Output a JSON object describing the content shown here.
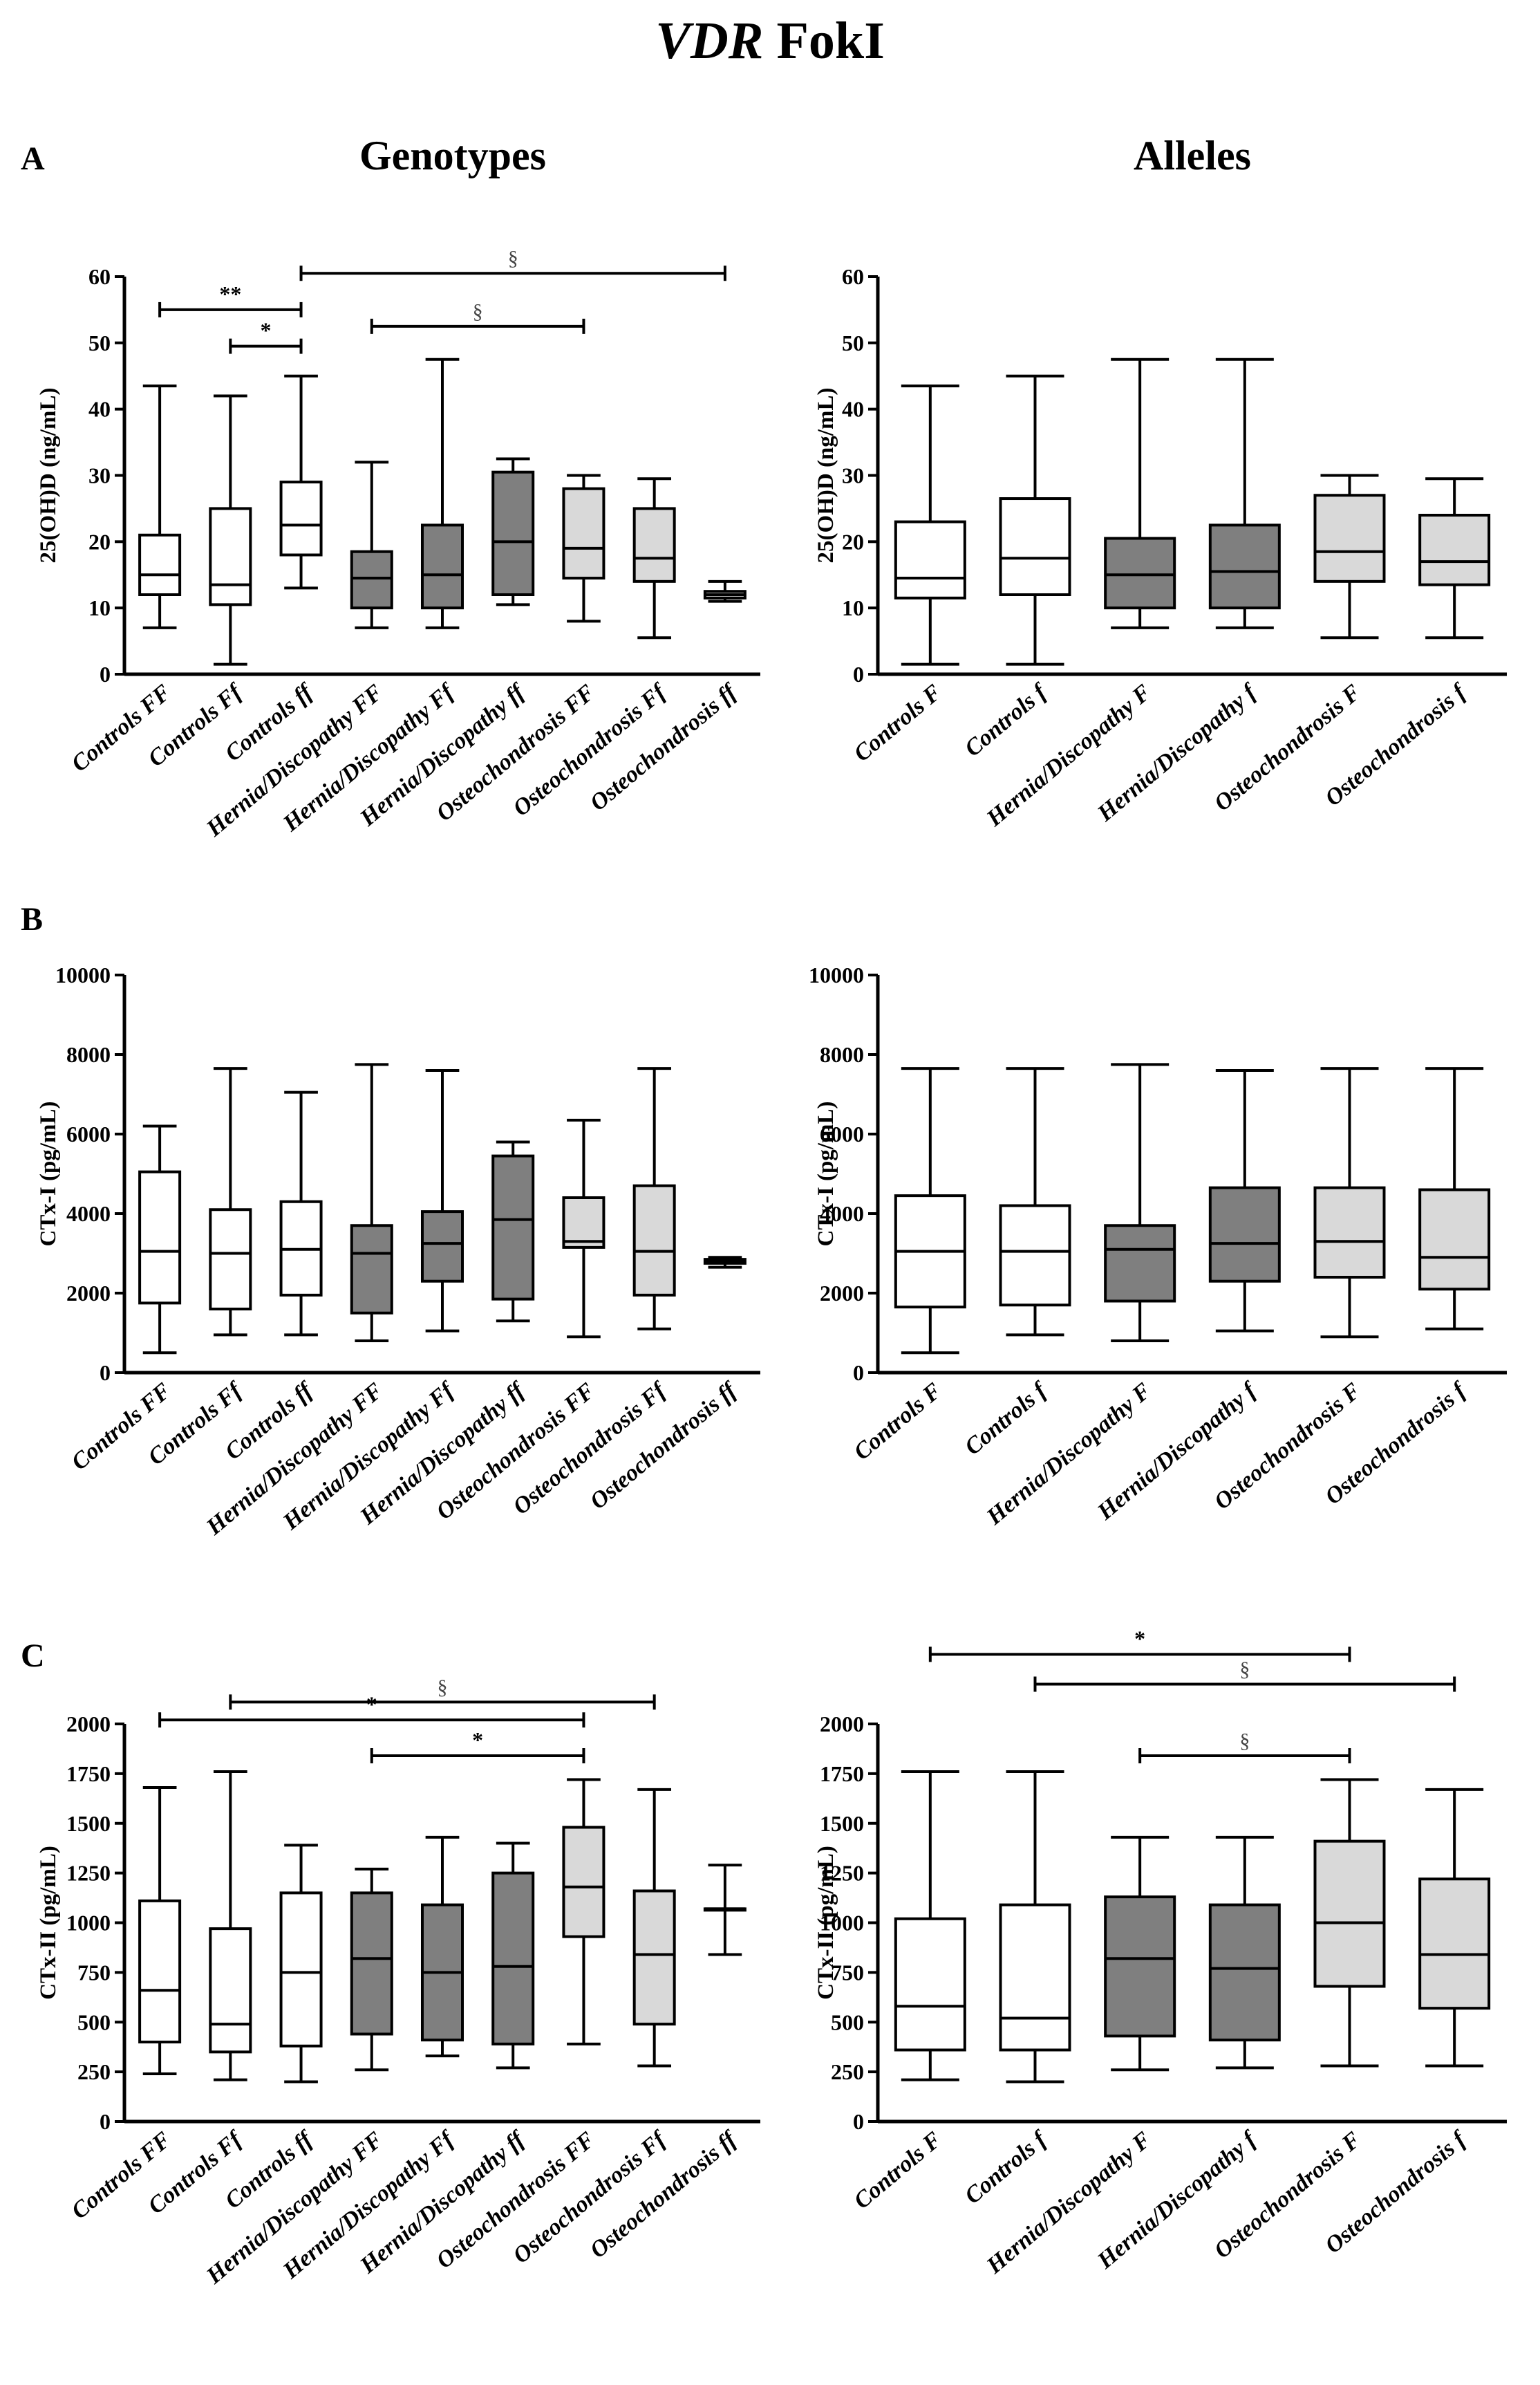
{
  "figure": {
    "title_italic": "VDR",
    "title_rest": "FokI",
    "col_genotypes": "Genotypes",
    "col_alleles": "Alleles",
    "panel_letters": [
      "A",
      "B",
      "C"
    ]
  },
  "colors": {
    "control": "#ffffff",
    "hernia": "#7f7f7f",
    "osteo": "#d9d9d9",
    "line": "#000000"
  },
  "chart_data": [
    {
      "id": "A-genotypes",
      "panel": "A",
      "type": "boxplot",
      "ylabel": "25(OH)D (ng/mL)",
      "ylim": [
        0,
        60
      ],
      "yticks": [
        0,
        10,
        20,
        30,
        40,
        50,
        60
      ],
      "ytick_labels": [
        "0",
        "10",
        "20",
        "30",
        "40",
        "50",
        "60"
      ],
      "categories": [
        "Controls FF",
        "Controls Ff",
        "Controls ff",
        "Hernia/Discopathy FF",
        "Hernia/Discopathy Ff",
        "Hernia/Discopathy ff",
        "Osteochondrosis FF",
        "Osteochondrosis Ff",
        "Osteochondrosis ff"
      ],
      "groups": [
        "control",
        "control",
        "control",
        "hernia",
        "hernia",
        "hernia",
        "osteo",
        "osteo",
        "osteo"
      ],
      "boxes": [
        {
          "min": 7,
          "q1": 12,
          "median": 15,
          "q3": 21,
          "max": 43.5
        },
        {
          "min": 1.5,
          "q1": 10.5,
          "median": 13.5,
          "q3": 25,
          "max": 42
        },
        {
          "min": 13,
          "q1": 18,
          "median": 22.5,
          "q3": 29,
          "max": 45
        },
        {
          "min": 7,
          "q1": 10,
          "median": 14.5,
          "q3": 18.5,
          "max": 32
        },
        {
          "min": 7,
          "q1": 10,
          "median": 15,
          "q3": 22.5,
          "max": 47.5
        },
        {
          "min": 10.5,
          "q1": 12,
          "median": 20,
          "q3": 30.5,
          "max": 32.5
        },
        {
          "min": 8,
          "q1": 14.5,
          "median": 19,
          "q3": 28,
          "max": 30
        },
        {
          "min": 5.5,
          "q1": 14,
          "median": 17.5,
          "q3": 25,
          "max": 29.5
        },
        {
          "min": 11,
          "q1": 11.5,
          "median": 12,
          "q3": 12.5,
          "max": 14
        }
      ],
      "brackets": [
        {
          "from": 0,
          "to": 2,
          "label": "**",
          "y": 55,
          "section": false
        },
        {
          "from": 1,
          "to": 2,
          "label": "*",
          "y": 49.5,
          "section": false
        },
        {
          "from": 2,
          "to": 8,
          "label": "§",
          "y": 60.5,
          "section": true
        },
        {
          "from": 3,
          "to": 6,
          "label": "§",
          "y": 52.5,
          "section": true
        }
      ]
    },
    {
      "id": "A-alleles",
      "panel": "A",
      "type": "boxplot",
      "ylabel": "25(OH)D (ng/mL)",
      "ylim": [
        0,
        60
      ],
      "yticks": [
        0,
        10,
        20,
        30,
        40,
        50,
        60
      ],
      "ytick_labels": [
        "0",
        "10",
        "20",
        "30",
        "40",
        "50",
        "60"
      ],
      "categories": [
        "Controls F",
        "Controls f",
        "Hernia/Discopathy F",
        "Hernia/Discopathy f",
        "Osteochondrosis F",
        "Osteochondrosis f"
      ],
      "groups": [
        "control",
        "control",
        "hernia",
        "hernia",
        "osteo",
        "osteo"
      ],
      "boxes": [
        {
          "min": 1.5,
          "q1": 11.5,
          "median": 14.5,
          "q3": 23,
          "max": 43.5
        },
        {
          "min": 1.5,
          "q1": 12,
          "median": 17.5,
          "q3": 26.5,
          "max": 45
        },
        {
          "min": 7,
          "q1": 10,
          "median": 15,
          "q3": 20.5,
          "max": 47.5
        },
        {
          "min": 7,
          "q1": 10,
          "median": 15.5,
          "q3": 22.5,
          "max": 47.5
        },
        {
          "min": 5.5,
          "q1": 14,
          "median": 18.5,
          "q3": 27,
          "max": 30
        },
        {
          "min": 5.5,
          "q1": 13.5,
          "median": 17,
          "q3": 24,
          "max": 29.5
        }
      ],
      "brackets": []
    },
    {
      "id": "B-genotypes",
      "panel": "B",
      "type": "boxplot",
      "ylabel": "CTx-I (pg/mL)",
      "ylim": [
        0,
        10000
      ],
      "yticks": [
        0,
        2000,
        4000,
        6000,
        8000,
        10000
      ],
      "ytick_labels": [
        "0",
        "2000",
        "4000",
        "6000",
        "8000",
        "10000"
      ],
      "categories": [
        "Controls FF",
        "Controls Ff",
        "Controls ff",
        "Hernia/Discopathy FF",
        "Hernia/Discopathy Ff",
        "Hernia/Discopathy ff",
        "Osteochondrosis FF",
        "Osteochondrosis Ff",
        "Osteochondrosis ff"
      ],
      "groups": [
        "control",
        "control",
        "control",
        "hernia",
        "hernia",
        "hernia",
        "osteo",
        "osteo",
        "osteo"
      ],
      "boxes": [
        {
          "min": 500,
          "q1": 1750,
          "median": 3050,
          "q3": 5050,
          "max": 6200
        },
        {
          "min": 950,
          "q1": 1600,
          "median": 3000,
          "q3": 4100,
          "max": 7650
        },
        {
          "min": 950,
          "q1": 1950,
          "median": 3100,
          "q3": 4300,
          "max": 7050
        },
        {
          "min": 800,
          "q1": 1500,
          "median": 3000,
          "q3": 3700,
          "max": 7750
        },
        {
          "min": 1050,
          "q1": 2300,
          "median": 3250,
          "q3": 4050,
          "max": 7600
        },
        {
          "min": 1300,
          "q1": 1850,
          "median": 3850,
          "q3": 5450,
          "max": 5800
        },
        {
          "min": 900,
          "q1": 3150,
          "median": 3300,
          "q3": 4400,
          "max": 6350
        },
        {
          "min": 1100,
          "q1": 1950,
          "median": 3050,
          "q3": 4700,
          "max": 7650
        },
        {
          "min": 2650,
          "q1": 2750,
          "median": 2800,
          "q3": 2850,
          "max": 2900
        }
      ],
      "brackets": []
    },
    {
      "id": "B-alleles",
      "panel": "B",
      "type": "boxplot",
      "ylabel": "CTx-I (pg/mL)",
      "ylim": [
        0,
        10000
      ],
      "yticks": [
        0,
        2000,
        4000,
        6000,
        8000,
        10000
      ],
      "ytick_labels": [
        "0",
        "2000",
        "4000",
        "6000",
        "8000",
        "10000"
      ],
      "categories": [
        "Controls F",
        "Controls f",
        "Hernia/Discopathy F",
        "Hernia/Discopathy f",
        "Osteochondrosis F",
        "Osteochondrosis f"
      ],
      "groups": [
        "control",
        "control",
        "hernia",
        "hernia",
        "osteo",
        "osteo"
      ],
      "boxes": [
        {
          "min": 500,
          "q1": 1650,
          "median": 3050,
          "q3": 4450,
          "max": 7650
        },
        {
          "min": 950,
          "q1": 1700,
          "median": 3050,
          "q3": 4200,
          "max": 7650
        },
        {
          "min": 800,
          "q1": 1800,
          "median": 3100,
          "q3": 3700,
          "max": 7750
        },
        {
          "min": 1050,
          "q1": 2300,
          "median": 3250,
          "q3": 4650,
          "max": 7600
        },
        {
          "min": 900,
          "q1": 2400,
          "median": 3300,
          "q3": 4650,
          "max": 7650
        },
        {
          "min": 1100,
          "q1": 2100,
          "median": 2900,
          "q3": 4600,
          "max": 7650
        }
      ],
      "brackets": []
    },
    {
      "id": "C-genotypes",
      "panel": "C",
      "type": "boxplot",
      "ylabel": "CTx-II (pg/mL)",
      "ylim": [
        0,
        2000
      ],
      "yticks": [
        0,
        250,
        500,
        750,
        1000,
        1250,
        1500,
        1750,
        2000
      ],
      "ytick_labels": [
        "0",
        "250",
        "500",
        "750",
        "1000",
        "1250",
        "1500",
        "1750",
        "2000"
      ],
      "categories": [
        "Controls FF",
        "Controls Ff",
        "Controls ff",
        "Hernia/Discopathy FF",
        "Hernia/Discopathy Ff",
        "Hernia/Discopathy ff",
        "Osteochondrosis FF",
        "Osteochondrosis Ff",
        "Osteochondrosis ff"
      ],
      "groups": [
        "control",
        "control",
        "control",
        "hernia",
        "hernia",
        "hernia",
        "osteo",
        "osteo",
        "osteo"
      ],
      "boxes": [
        {
          "min": 240,
          "q1": 400,
          "median": 660,
          "q3": 1110,
          "max": 1680
        },
        {
          "min": 210,
          "q1": 350,
          "median": 490,
          "q3": 970,
          "max": 1760
        },
        {
          "min": 200,
          "q1": 380,
          "median": 750,
          "q3": 1150,
          "max": 1390
        },
        {
          "min": 260,
          "q1": 440,
          "median": 820,
          "q3": 1150,
          "max": 1270
        },
        {
          "min": 330,
          "q1": 410,
          "median": 750,
          "q3": 1090,
          "max": 1430
        },
        {
          "min": 270,
          "q1": 390,
          "median": 780,
          "q3": 1250,
          "max": 1400
        },
        {
          "min": 390,
          "q1": 930,
          "median": 1180,
          "q3": 1480,
          "max": 1720
        },
        {
          "min": 280,
          "q1": 490,
          "median": 840,
          "q3": 1160,
          "max": 1670
        },
        {
          "min": 840,
          "q1": 1070,
          "median": 1070,
          "q3": 1070,
          "max": 1290
        }
      ],
      "brackets": [
        {
          "from": 1,
          "to": 7,
          "label": "§",
          "y": 2110,
          "section": true
        },
        {
          "from": 0,
          "to": 6,
          "label": "*",
          "y": 2020,
          "section": false
        },
        {
          "from": 3,
          "to": 6,
          "label": "*",
          "y": 1840,
          "section": false
        }
      ]
    },
    {
      "id": "C-alleles",
      "panel": "C",
      "type": "boxplot",
      "ylabel": "CTx-II (pg/mL)",
      "ylim": [
        0,
        2000
      ],
      "yticks": [
        0,
        250,
        500,
        750,
        1000,
        1250,
        1500,
        1750,
        2000
      ],
      "ytick_labels": [
        "0",
        "250",
        "500",
        "750",
        "1000",
        "1250",
        "1500",
        "1750",
        "2000"
      ],
      "categories": [
        "Controls F",
        "Controls f",
        "Hernia/Discopathy F",
        "Hernia/Discopathy f",
        "Osteochondrosis F",
        "Osteochondrosis f"
      ],
      "groups": [
        "control",
        "control",
        "hernia",
        "hernia",
        "osteo",
        "osteo"
      ],
      "boxes": [
        {
          "min": 210,
          "q1": 360,
          "median": 580,
          "q3": 1020,
          "max": 1760
        },
        {
          "min": 200,
          "q1": 360,
          "median": 520,
          "q3": 1090,
          "max": 1760
        },
        {
          "min": 260,
          "q1": 430,
          "median": 820,
          "q3": 1130,
          "max": 1430
        },
        {
          "min": 270,
          "q1": 410,
          "median": 770,
          "q3": 1090,
          "max": 1430
        },
        {
          "min": 280,
          "q1": 680,
          "median": 1000,
          "q3": 1410,
          "max": 1720
        },
        {
          "min": 280,
          "q1": 570,
          "median": 840,
          "q3": 1220,
          "max": 1670
        }
      ],
      "brackets": [
        {
          "from": 0,
          "to": 4,
          "label": "*",
          "y": 2350,
          "section": false
        },
        {
          "from": 1,
          "to": 5,
          "label": "§",
          "y": 2200,
          "section": true
        },
        {
          "from": 2,
          "to": 4,
          "label": "§",
          "y": 1840,
          "section": true
        }
      ]
    }
  ]
}
